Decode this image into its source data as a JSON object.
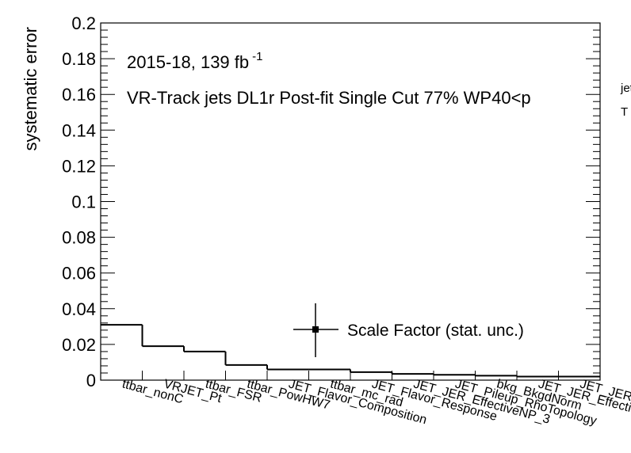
{
  "chart_data": {
    "type": "histogram-step",
    "ylabel": "systematic error",
    "ylim": [
      0,
      0.2
    ],
    "yticks": [
      "0",
      "0.02",
      "0.04",
      "0.06",
      "0.08",
      "0.1",
      "0.12",
      "0.14",
      "0.16",
      "0.18",
      "0.2"
    ],
    "annotation_line1": "2015-18, 139 fb",
    "annotation_line1_sup": "-1",
    "annotation_line2": "VR-Track jets DL1r Post-fit Single Cut 77% WP40<p",
    "annotation_cut_sup": "jet",
    "annotation_cut_sub": "T",
    "legend_label": "Scale Factor (stat. unc.)",
    "categories": [
      "ttbar_nonC",
      "VRJET_Pt",
      "ttbar_FSR",
      "ttbar_PowHW7",
      "JET_Flavor_Composition",
      "ttbar_mc_rad",
      "JET_Flavor_Response",
      "JET_JER_EffectiveNP_3",
      "JET_Pileup_RhoTopology",
      "bkg_BkgdNorm",
      "JET_JER_EffectiveNP_",
      "JET_JER_"
    ],
    "values": [
      0.031,
      0.019,
      0.016,
      0.0085,
      0.006,
      0.006,
      0.0045,
      0.0035,
      0.003,
      0.0025,
      0.002,
      0.002
    ]
  }
}
